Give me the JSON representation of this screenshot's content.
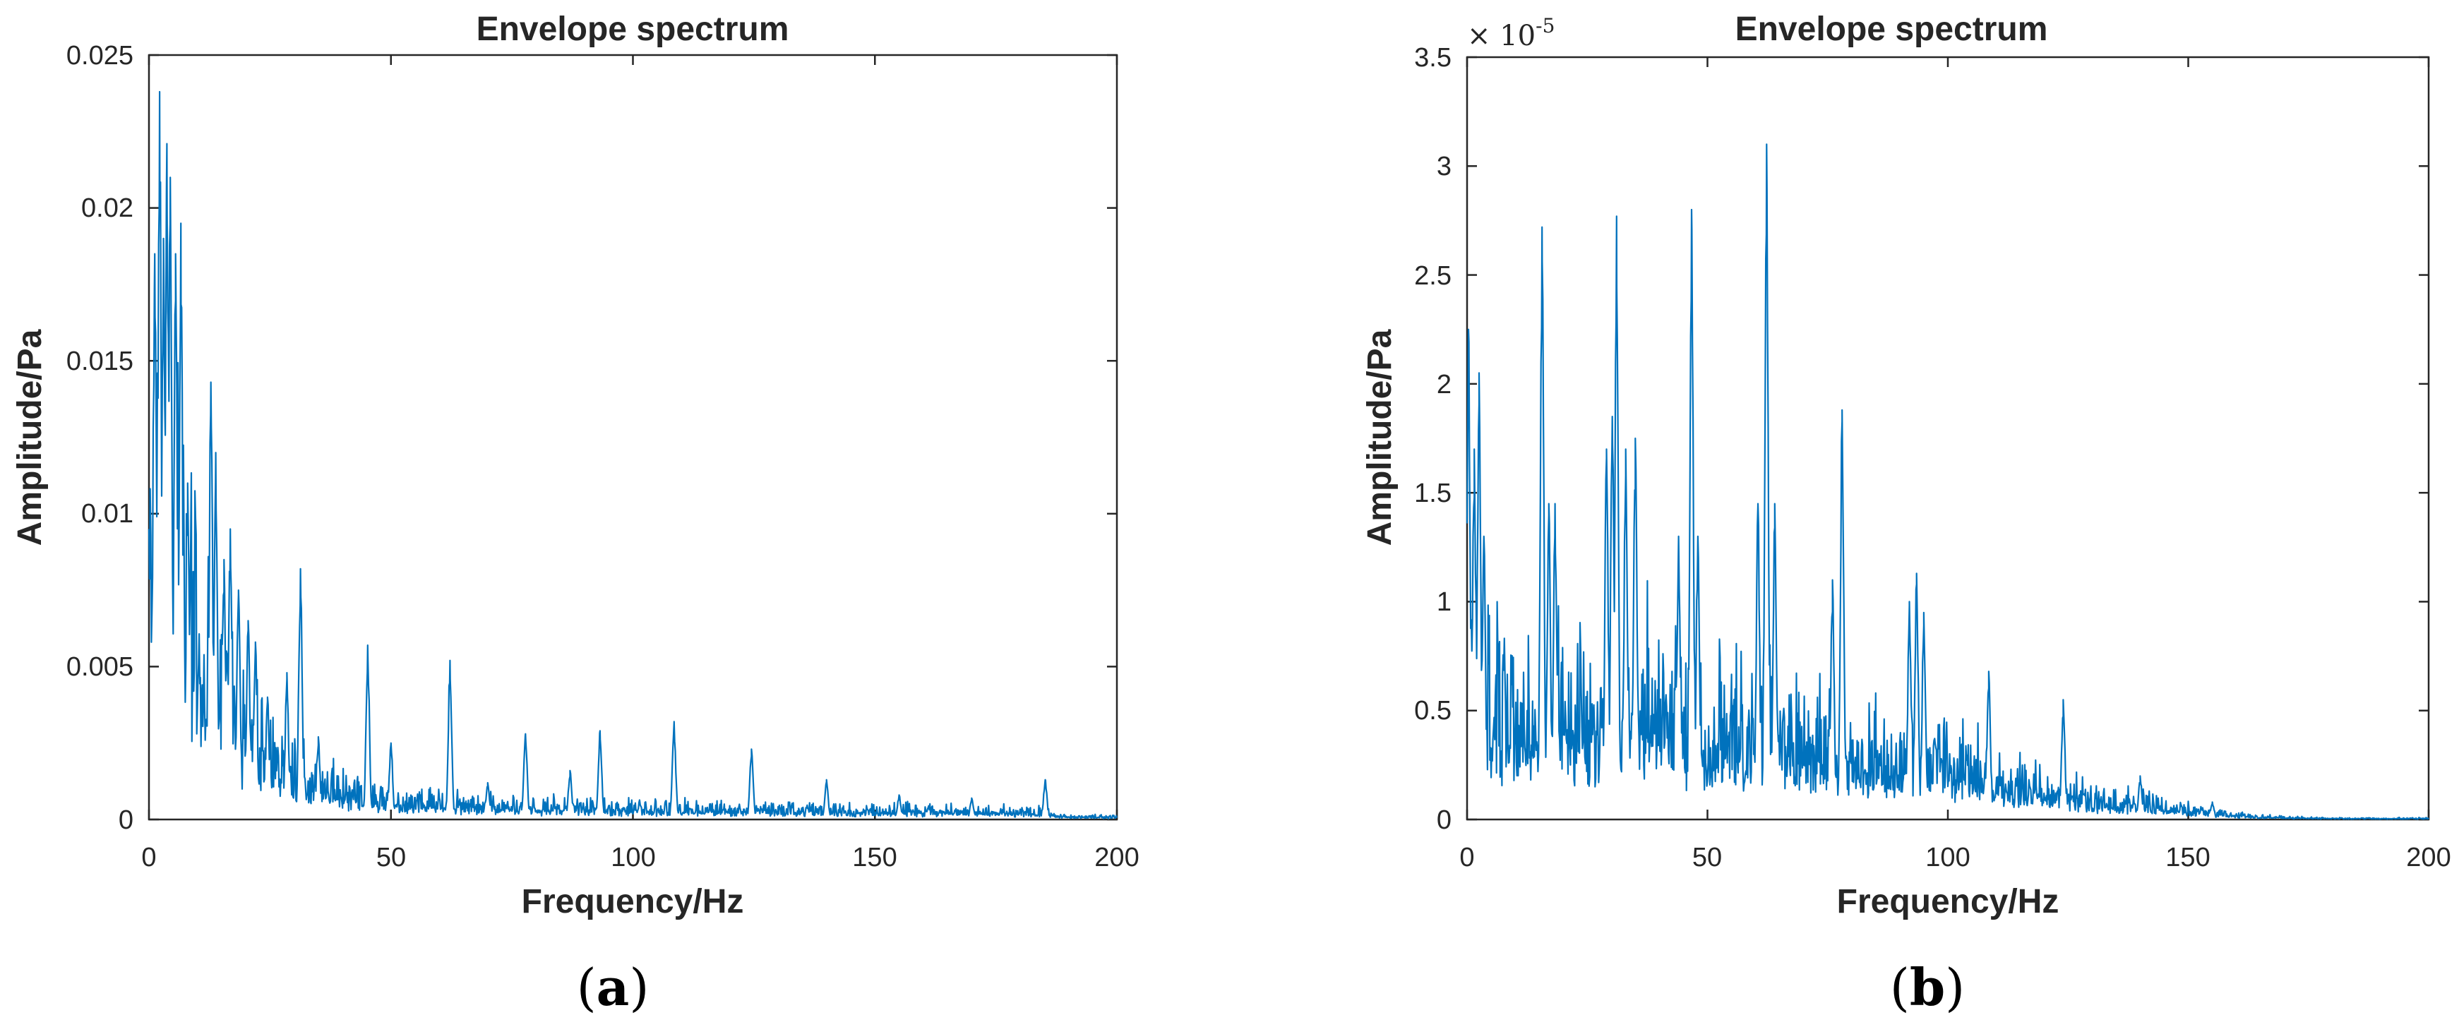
{
  "chart_data": [
    {
      "type": "line",
      "panel": "a",
      "caption_letter": "a",
      "title": "Envelope spectrum",
      "xlabel": "Frequency/Hz",
      "ylabel": "Amplitude/Pa",
      "xlim": [
        0,
        200
      ],
      "ylim": [
        0,
        0.025
      ],
      "xticks": [
        "0",
        "50",
        "100",
        "150",
        "200"
      ],
      "yticks": [
        "0",
        "0.005",
        "0.01",
        "0.015",
        "0.02",
        "0.025"
      ],
      "y_multiplier": "",
      "color": "#0072bd",
      "series": [
        {
          "noise_floor": [
            [
              0,
              0.012
            ],
            [
              3,
              0.014
            ],
            [
              6,
              0.011
            ],
            [
              10,
              0.006
            ],
            [
              15,
              0.0045
            ],
            [
              20,
              0.003
            ],
            [
              25,
              0.0022
            ],
            [
              30,
              0.0016
            ],
            [
              40,
              0.001
            ],
            [
              50,
              0.0007
            ],
            [
              60,
              0.0006
            ],
            [
              80,
              0.00045
            ],
            [
              100,
              0.0004
            ],
            [
              130,
              0.00035
            ],
            [
              160,
              0.0003
            ],
            [
              185,
              0.00025
            ],
            [
              190,
              0.0001
            ],
            [
              200,
              0.0001
            ]
          ],
          "peaks": [
            [
              1.2,
              0.0185
            ],
            [
              2.2,
              0.0238
            ],
            [
              3.0,
              0.019
            ],
            [
              3.7,
              0.0221
            ],
            [
              4.4,
              0.021
            ],
            [
              5.5,
              0.0185
            ],
            [
              6.6,
              0.0195
            ],
            [
              8.0,
              0.011
            ],
            [
              12.8,
              0.0143
            ],
            [
              13.8,
              0.012
            ],
            [
              15.5,
              0.0085
            ],
            [
              16.8,
              0.0095
            ],
            [
              18.5,
              0.0075
            ],
            [
              20.5,
              0.0065
            ],
            [
              22.0,
              0.0058
            ],
            [
              24.5,
              0.004
            ],
            [
              28.5,
              0.0048
            ],
            [
              31.3,
              0.0082
            ],
            [
              35.0,
              0.0027
            ],
            [
              45.2,
              0.0057
            ],
            [
              50.0,
              0.0025
            ],
            [
              62.2,
              0.0052
            ],
            [
              70.0,
              0.0012
            ],
            [
              77.8,
              0.0028
            ],
            [
              87.0,
              0.0016
            ],
            [
              93.2,
              0.0029
            ],
            [
              108.5,
              0.0032
            ],
            [
              124.5,
              0.0023
            ],
            [
              140.0,
              0.0013
            ],
            [
              155.0,
              0.0008
            ],
            [
              170.0,
              0.0007
            ],
            [
              185.2,
              0.0013
            ]
          ]
        }
      ]
    },
    {
      "type": "line",
      "panel": "b",
      "caption_letter": "b",
      "title": "Envelope spectrum",
      "xlabel": "Frequency/Hz",
      "ylabel": "Amplitude/Pa",
      "xlim": [
        0,
        200
      ],
      "ylim": [
        0,
        3.5
      ],
      "xticks": [
        "0",
        "50",
        "100",
        "150",
        "200"
      ],
      "yticks": [
        "0",
        "0.5",
        "1",
        "1.5",
        "2",
        "2.5",
        "3",
        "3.5"
      ],
      "y_multiplier": "10",
      "y_multiplier_exponent": "-5",
      "color": "#0072bd",
      "series": [
        {
          "noise_floor": [
            [
              0,
              0.8
            ],
            [
              5,
              0.55
            ],
            [
              10,
              0.5
            ],
            [
              20,
              0.55
            ],
            [
              30,
              0.55
            ],
            [
              40,
              0.55
            ],
            [
              50,
              0.45
            ],
            [
              60,
              0.45
            ],
            [
              70,
              0.4
            ],
            [
              80,
              0.35
            ],
            [
              90,
              0.3
            ],
            [
              100,
              0.3
            ],
            [
              110,
              0.2
            ],
            [
              120,
              0.15
            ],
            [
              130,
              0.1
            ],
            [
              140,
              0.08
            ],
            [
              150,
              0.05
            ],
            [
              160,
              0.02
            ],
            [
              170,
              0.01
            ],
            [
              180,
              0.005
            ],
            [
              200,
              0.005
            ]
          ],
          "peaks": [
            [
              0.3,
              2.25
            ],
            [
              1.5,
              1.7
            ],
            [
              2.5,
              2.05
            ],
            [
              3.5,
              1.3
            ],
            [
              15.6,
              2.72
            ],
            [
              17.0,
              1.45
            ],
            [
              18.3,
              1.45
            ],
            [
              29.0,
              1.7
            ],
            [
              30.2,
              1.85
            ],
            [
              31.1,
              2.77
            ],
            [
              33.0,
              1.7
            ],
            [
              35.0,
              1.75
            ],
            [
              44.0,
              1.3
            ],
            [
              46.7,
              2.8
            ],
            [
              48.0,
              1.3
            ],
            [
              60.5,
              1.45
            ],
            [
              62.3,
              3.1
            ],
            [
              64.0,
              1.45
            ],
            [
              76.0,
              1.1
            ],
            [
              78.0,
              1.88
            ],
            [
              92.0,
              1.0
            ],
            [
              93.5,
              1.13
            ],
            [
              95.0,
              0.95
            ],
            [
              108.5,
              0.68
            ],
            [
              124.0,
              0.55
            ],
            [
              140.0,
              0.2
            ],
            [
              155.0,
              0.08
            ]
          ]
        }
      ]
    }
  ]
}
